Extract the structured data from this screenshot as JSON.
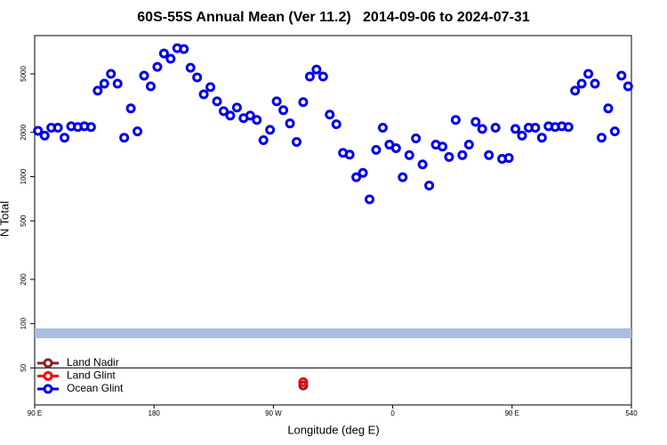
{
  "chart_data": {
    "type": "scatter",
    "title": "60S-55S Annual Mean (Ver 11.2)   2014-09-06 to 2024-07-31",
    "x_label": "Longitude (deg E)",
    "y_label": "N Total",
    "log_y": true,
    "legend": "bottom-left",
    "xlim": [
      90,
      540
    ],
    "xticks": [
      {
        "value": 90,
        "label": "90 E"
      },
      180,
      {
        "value": 270,
        "label": "90 W"
      },
      {
        "value": 360,
        "label": "0"
      },
      {
        "value": 450,
        "label": "90 E"
      },
      540
    ],
    "ylim": [
      28,
      9100
    ],
    "yticks": [
      50,
      100,
      200,
      500,
      1000,
      2000,
      5000
    ],
    "band": {
      "value": 86,
      "color": "#a9bee0"
    },
    "divider": 50,
    "series": [
      {
        "name": "Land Nadir",
        "color": "#8b2323",
        "x": [
          292.5
        ],
        "values": [
          38
        ]
      },
      {
        "name": "Land Glint",
        "color": "#ff0000",
        "x": [
          292.5
        ],
        "values": [
          40
        ]
      },
      {
        "name": "Ocean Glint",
        "color": "#0000ee",
        "x": [
          92.5,
          97.5,
          102.5,
          107.5,
          112.5,
          117.5,
          122.5,
          127.5,
          132.5,
          137.5,
          142.5,
          147.5,
          152.5,
          157.5,
          162.5,
          167.5,
          172.5,
          177.5,
          182.5,
          187.5,
          192.5,
          197.5,
          202.5,
          207.5,
          212.5,
          217.5,
          222.5,
          227.5,
          232.5,
          237.5,
          242.5,
          247.5,
          252.5,
          257.5,
          262.5,
          267.5,
          272.5,
          277.5,
          282.5,
          287.5,
          292.5,
          297.5,
          302.5,
          307.5,
          312.5,
          317.5,
          322.5,
          327.5,
          332.5,
          337.5,
          342.5,
          347.5,
          352.5,
          357.5,
          362.5,
          367.5,
          372.5,
          377.5,
          382.5,
          387.5,
          392.5,
          397.5,
          402.5,
          407.5,
          412.5,
          417.5,
          422.5,
          427.5,
          432.5,
          437.5,
          442.5,
          447.5,
          452.5,
          457.5,
          462.5,
          467.5,
          472.5,
          477.5,
          482.5,
          487.5,
          492.5,
          497.5,
          502.5,
          507.5,
          512.5,
          517.5,
          522.5,
          527.5,
          532.5,
          537.5
        ],
        "values": [
          2050,
          1900,
          2150,
          2150,
          1840,
          2200,
          2175,
          2200,
          2175,
          3840,
          4290,
          5000,
          4290,
          1840,
          2910,
          2030,
          4860,
          4110,
          5580,
          6880,
          6330,
          7470,
          7370,
          5500,
          4730,
          3630,
          4060,
          3250,
          2790,
          2600,
          2950,
          2500,
          2600,
          2430,
          1770,
          2080,
          3250,
          2830,
          2300,
          1720,
          3210,
          4790,
          5350,
          4790,
          2640,
          2270,
          1450,
          1410,
          990,
          1060,
          700,
          1520,
          2150,
          1650,
          1560,
          990,
          1400,
          1820,
          1210,
          870,
          1650,
          1600,
          1360,
          2430,
          1400,
          1650,
          2360,
          2110,
          1400,
          2150,
          1320,
          1340,
          2110,
          1900,
          2150,
          2150,
          1840,
          2200,
          2175,
          2200,
          2175,
          3840,
          4290,
          5000,
          4290,
          1840,
          2910,
          2030,
          4860,
          4110
        ]
      }
    ]
  }
}
